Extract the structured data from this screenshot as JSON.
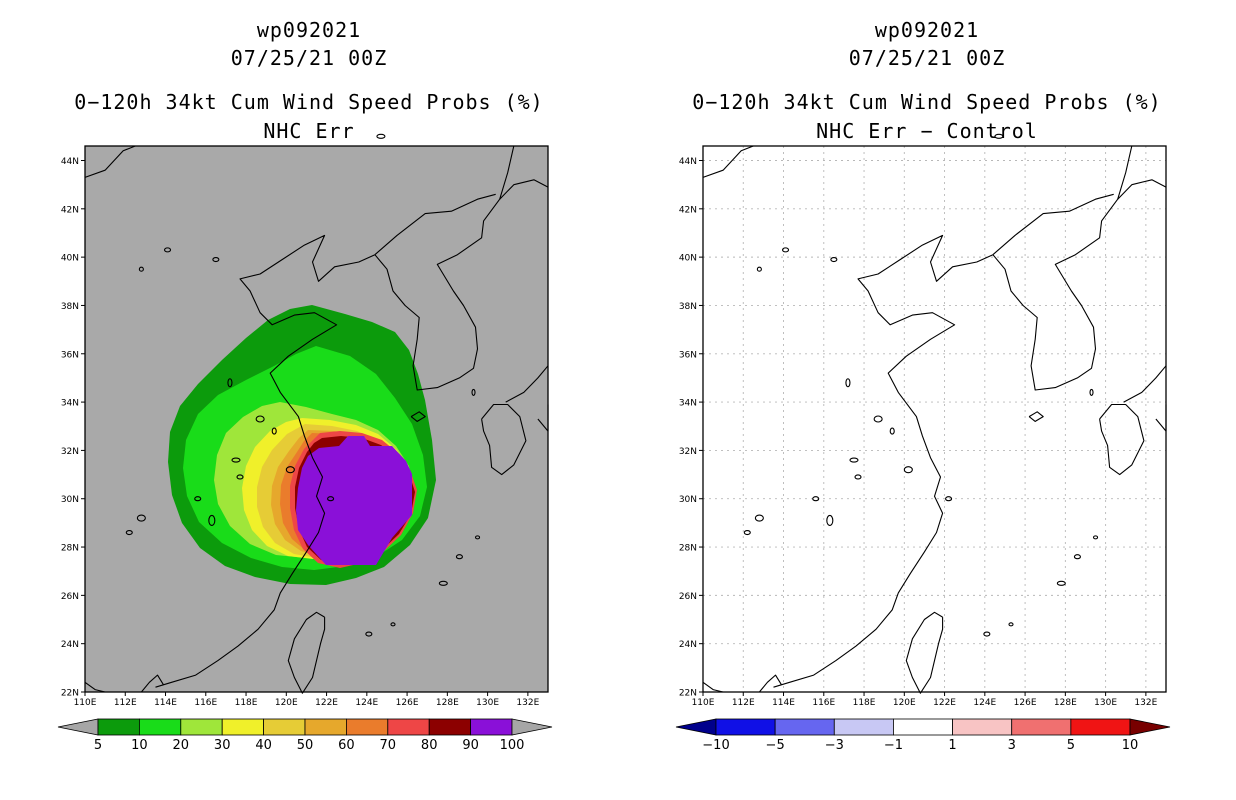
{
  "left_panel": {
    "storm_id": "wp092021",
    "datetime": "07/25/21 00Z",
    "product": "0−120h 34kt Cum Wind Speed Probs (%)",
    "subtitle": "NHC Err",
    "background_color": "#a9a9a9",
    "colorbar": {
      "labels": [
        "5",
        "10",
        "20",
        "30",
        "40",
        "50",
        "60",
        "70",
        "80",
        "90",
        "100"
      ],
      "colors": [
        "#a6a6a6",
        "#0c9b0c",
        "#19dc19",
        "#9fe63a",
        "#f0f02a",
        "#e6cc36",
        "#e6a82c",
        "#ea7c2c",
        "#ee4646",
        "#8c0000",
        "#8a10d8",
        "#a6a6a6"
      ]
    }
  },
  "right_panel": {
    "storm_id": "wp092021",
    "datetime": "07/25/21 00Z",
    "product": "0−120h 34kt Cum Wind Speed Probs (%)",
    "subtitle": "NHC Err − Control",
    "background_color": "#ffffff",
    "colorbar": {
      "labels": [
        "−10",
        "−5",
        "−3",
        "−1",
        "1",
        "3",
        "5",
        "10"
      ],
      "colors": [
        "#00008c",
        "#1010e6",
        "#6666f0",
        "#c8c8f4",
        "#ffffff",
        "#f8c4c4",
        "#f07070",
        "#f01414",
        "#780000"
      ]
    }
  },
  "map": {
    "lon_labels": [
      "110E",
      "112E",
      "114E",
      "116E",
      "118E",
      "120E",
      "122E",
      "124E",
      "126E",
      "128E",
      "130E",
      "132E"
    ],
    "lat_labels": [
      "22N",
      "24N",
      "26N",
      "28N",
      "30N",
      "32N",
      "34N",
      "36N",
      "38N",
      "40N",
      "42N",
      "44N"
    ]
  }
}
